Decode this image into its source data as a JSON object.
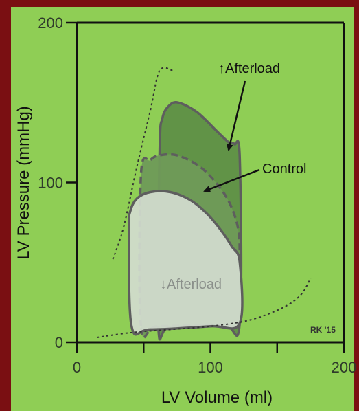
{
  "colors": {
    "frame": "#7a0f12",
    "background": "#8fce55",
    "increased_afterload_fill": "#5f8f47",
    "control_fill": "#6f9a58",
    "decreased_afterload_fill": "#d3dccf",
    "loop_outline": "#5e5e5e",
    "esp_line": "#333333",
    "edpvr_line": "#333333"
  },
  "chart_data": {
    "type": "line",
    "title": "",
    "xlabel": "LV Volume (ml)",
    "ylabel": "LV Pressure (mmHg)",
    "xlim": [
      0,
      200
    ],
    "ylim": [
      0,
      200
    ],
    "x_ticks": [
      0,
      50,
      100,
      150,
      200
    ],
    "x_tick_labels": [
      "0",
      "",
      "100",
      "",
      "200"
    ],
    "y_ticks": [
      0,
      100,
      200
    ],
    "y_tick_labels": [
      "0",
      "100",
      "200"
    ],
    "grid": false,
    "series": [
      {
        "name": "↑Afterload",
        "style": "pv-loop",
        "points": [
          [
            61,
            10
          ],
          [
            62,
            120
          ],
          [
            64,
            140
          ],
          [
            69,
            148
          ],
          [
            76,
            150
          ],
          [
            90,
            144
          ],
          [
            105,
            132
          ],
          [
            114,
            125
          ],
          [
            118,
            124
          ],
          [
            122,
            115
          ],
          [
            122,
            12
          ],
          [
            110,
            11
          ],
          [
            70,
            10
          ],
          [
            61,
            10
          ]
        ]
      },
      {
        "name": "Control",
        "style": "pv-loop-dashed",
        "points": [
          [
            48,
            10
          ],
          [
            48,
            105
          ],
          [
            55,
            114
          ],
          [
            62,
            117
          ],
          [
            75,
            117
          ],
          [
            92,
            110
          ],
          [
            106,
            98
          ],
          [
            115,
            86
          ],
          [
            121,
            70
          ],
          [
            122,
            50
          ],
          [
            122,
            12
          ],
          [
            100,
            11
          ],
          [
            60,
            10
          ],
          [
            48,
            10
          ]
        ]
      },
      {
        "name": "↓Afterload",
        "style": "pv-loop",
        "points": [
          [
            41,
            10
          ],
          [
            39,
            70
          ],
          [
            40,
            82
          ],
          [
            45,
            90
          ],
          [
            55,
            94
          ],
          [
            70,
            94
          ],
          [
            85,
            89
          ],
          [
            98,
            80
          ],
          [
            108,
            70
          ],
          [
            116,
            60
          ],
          [
            122,
            50
          ],
          [
            122,
            12
          ],
          [
            100,
            10
          ],
          [
            55,
            8
          ],
          [
            41,
            10
          ]
        ]
      },
      {
        "name": "",
        "style": "esp-dotted",
        "points": [
          [
            27,
            52
          ],
          [
            35,
            72
          ],
          [
            45,
            110
          ],
          [
            55,
            145
          ],
          [
            62,
            170
          ],
          [
            72,
            170
          ]
        ]
      },
      {
        "name": "",
        "style": "edpvr-dotted",
        "points": [
          [
            15,
            3
          ],
          [
            40,
            6
          ],
          [
            70,
            8
          ],
          [
            100,
            10
          ],
          [
            130,
            14
          ],
          [
            155,
            22
          ],
          [
            168,
            30
          ],
          [
            175,
            40
          ]
        ]
      }
    ],
    "annotations": [
      {
        "text": "↑Afterload",
        "x": 98,
        "y": 172,
        "arrow_to": [
          112,
          125
        ]
      },
      {
        "text": "Control",
        "x": 140,
        "y": 108,
        "arrow_to": [
          95,
          95
        ]
      },
      {
        "text": "↓Afterload",
        "x": 62,
        "y": 35
      },
      {
        "text": "RK '15",
        "x": 180,
        "y": 8
      }
    ]
  }
}
